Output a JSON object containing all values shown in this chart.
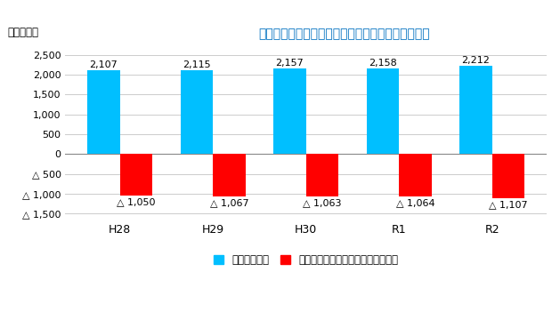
{
  "title": "下水道使用料と基準外繰入金を除いた当年度純利益",
  "ylabel": "（百万円）",
  "categories": [
    "H28",
    "H29",
    "H30",
    "R1",
    "R2"
  ],
  "blue_values": [
    2107,
    2115,
    2157,
    2158,
    2212
  ],
  "red_values": [
    -1050,
    -1067,
    -1063,
    -1064,
    -1107
  ],
  "blue_labels": [
    "2,107",
    "2,115",
    "2,157",
    "2,158",
    "2,212"
  ],
  "red_labels": [
    "△ 1,050",
    "△ 1,067",
    "△ 1,063",
    "△ 1,064",
    "△ 1,107"
  ],
  "blue_color": "#00BFFF",
  "red_color": "#FF0000",
  "yticks": [
    -1500,
    -1000,
    -500,
    0,
    500,
    1000,
    1500,
    2000,
    2500
  ],
  "ytick_labels": [
    "△ 1,500",
    "△ 1,000",
    "△ 500",
    "0",
    "500",
    "1,000",
    "1,500",
    "2,000",
    "2,500"
  ],
  "ylim": [
    -1650,
    2750
  ],
  "legend_blue": "下水道使用料",
  "legend_red": "基準外繰入金を除いた当年度純利益",
  "bar_width": 0.35,
  "background_color": "#FFFFFF",
  "grid_color": "#CCCCCC",
  "title_color": "#0070C0",
  "ylabel_color": "#000000"
}
